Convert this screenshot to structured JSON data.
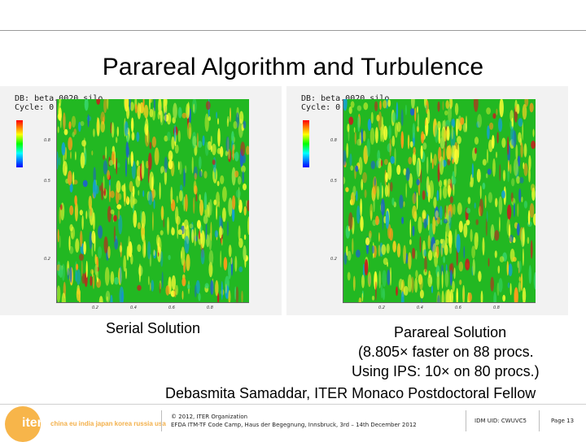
{
  "slide": {
    "title": "Parareal Algorithm and Turbulence"
  },
  "panels": {
    "left": {
      "line1": "DB: beta.0020.silo",
      "line2": "Cycle: 0",
      "ticks_x": [
        "0.2",
        "0.4",
        "0.6",
        "0.8"
      ],
      "ticks_y": [
        "0.8",
        "0.5",
        "0.2"
      ]
    },
    "right": {
      "line1": "DB: beta.0020.silo",
      "line2": "Cycle: 0",
      "ticks_x": [
        "0.2",
        "0.4",
        "0.6",
        "0.8"
      ],
      "ticks_y": [
        "0.8",
        "0.5",
        "0.2"
      ]
    }
  },
  "captions": {
    "serial": "Serial Solution",
    "parareal_1": "Parareal Solution",
    "parareal_2": "(8.805× faster on 88 procs.",
    "parareal_3": "Using IPS: 10× on 80 procs.)",
    "author": "Debasmita Samaddar, ITER Monaco Postdoctoral Fellow"
  },
  "footer": {
    "logo": "iter",
    "countries": "china eu india japan korea russia usa",
    "copyright": "© 2012, ITER Organization",
    "event": "EFDA ITM-TF Code Camp, Haus der Begegnung, Innsbruck, 3rd – 14th December 2012",
    "idm": "IDM UID: CWUVC5",
    "page": "Page 13"
  },
  "colors": {
    "field_base": "#22b822",
    "logo": "#f7b54a"
  }
}
